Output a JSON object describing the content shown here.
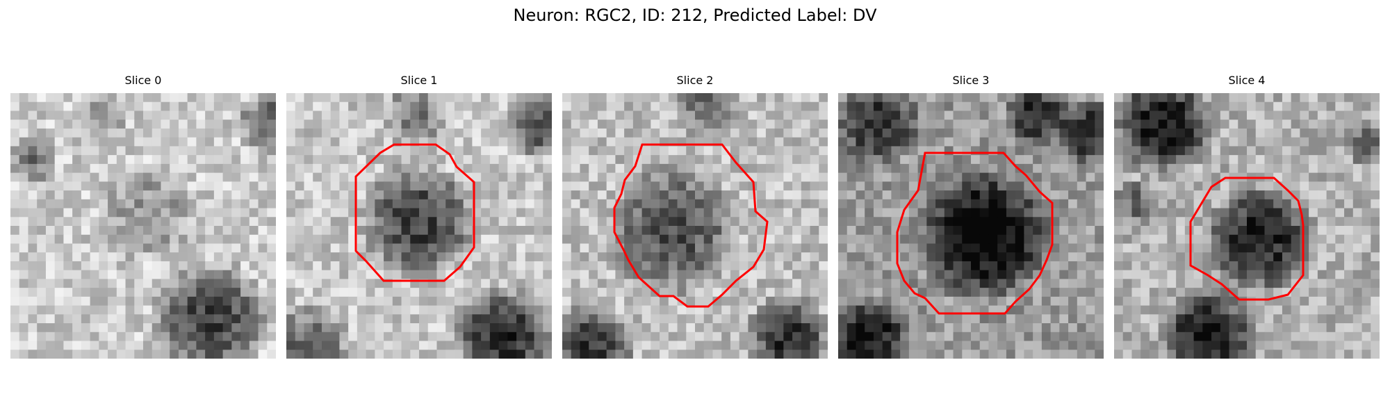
{
  "figure": {
    "title": "Neuron: RGC2, ID: 212, Predicted Label: DV"
  },
  "panels": [
    {
      "title": "Slice 0",
      "has_outline": false
    },
    {
      "title": "Slice 1",
      "has_outline": true
    },
    {
      "title": "Slice 2",
      "has_outline": true
    },
    {
      "title": "Slice 3",
      "has_outline": true
    },
    {
      "title": "Slice 4",
      "has_outline": true
    }
  ],
  "colors": {
    "outline": "#ff0000",
    "background": "#ffffff"
  }
}
